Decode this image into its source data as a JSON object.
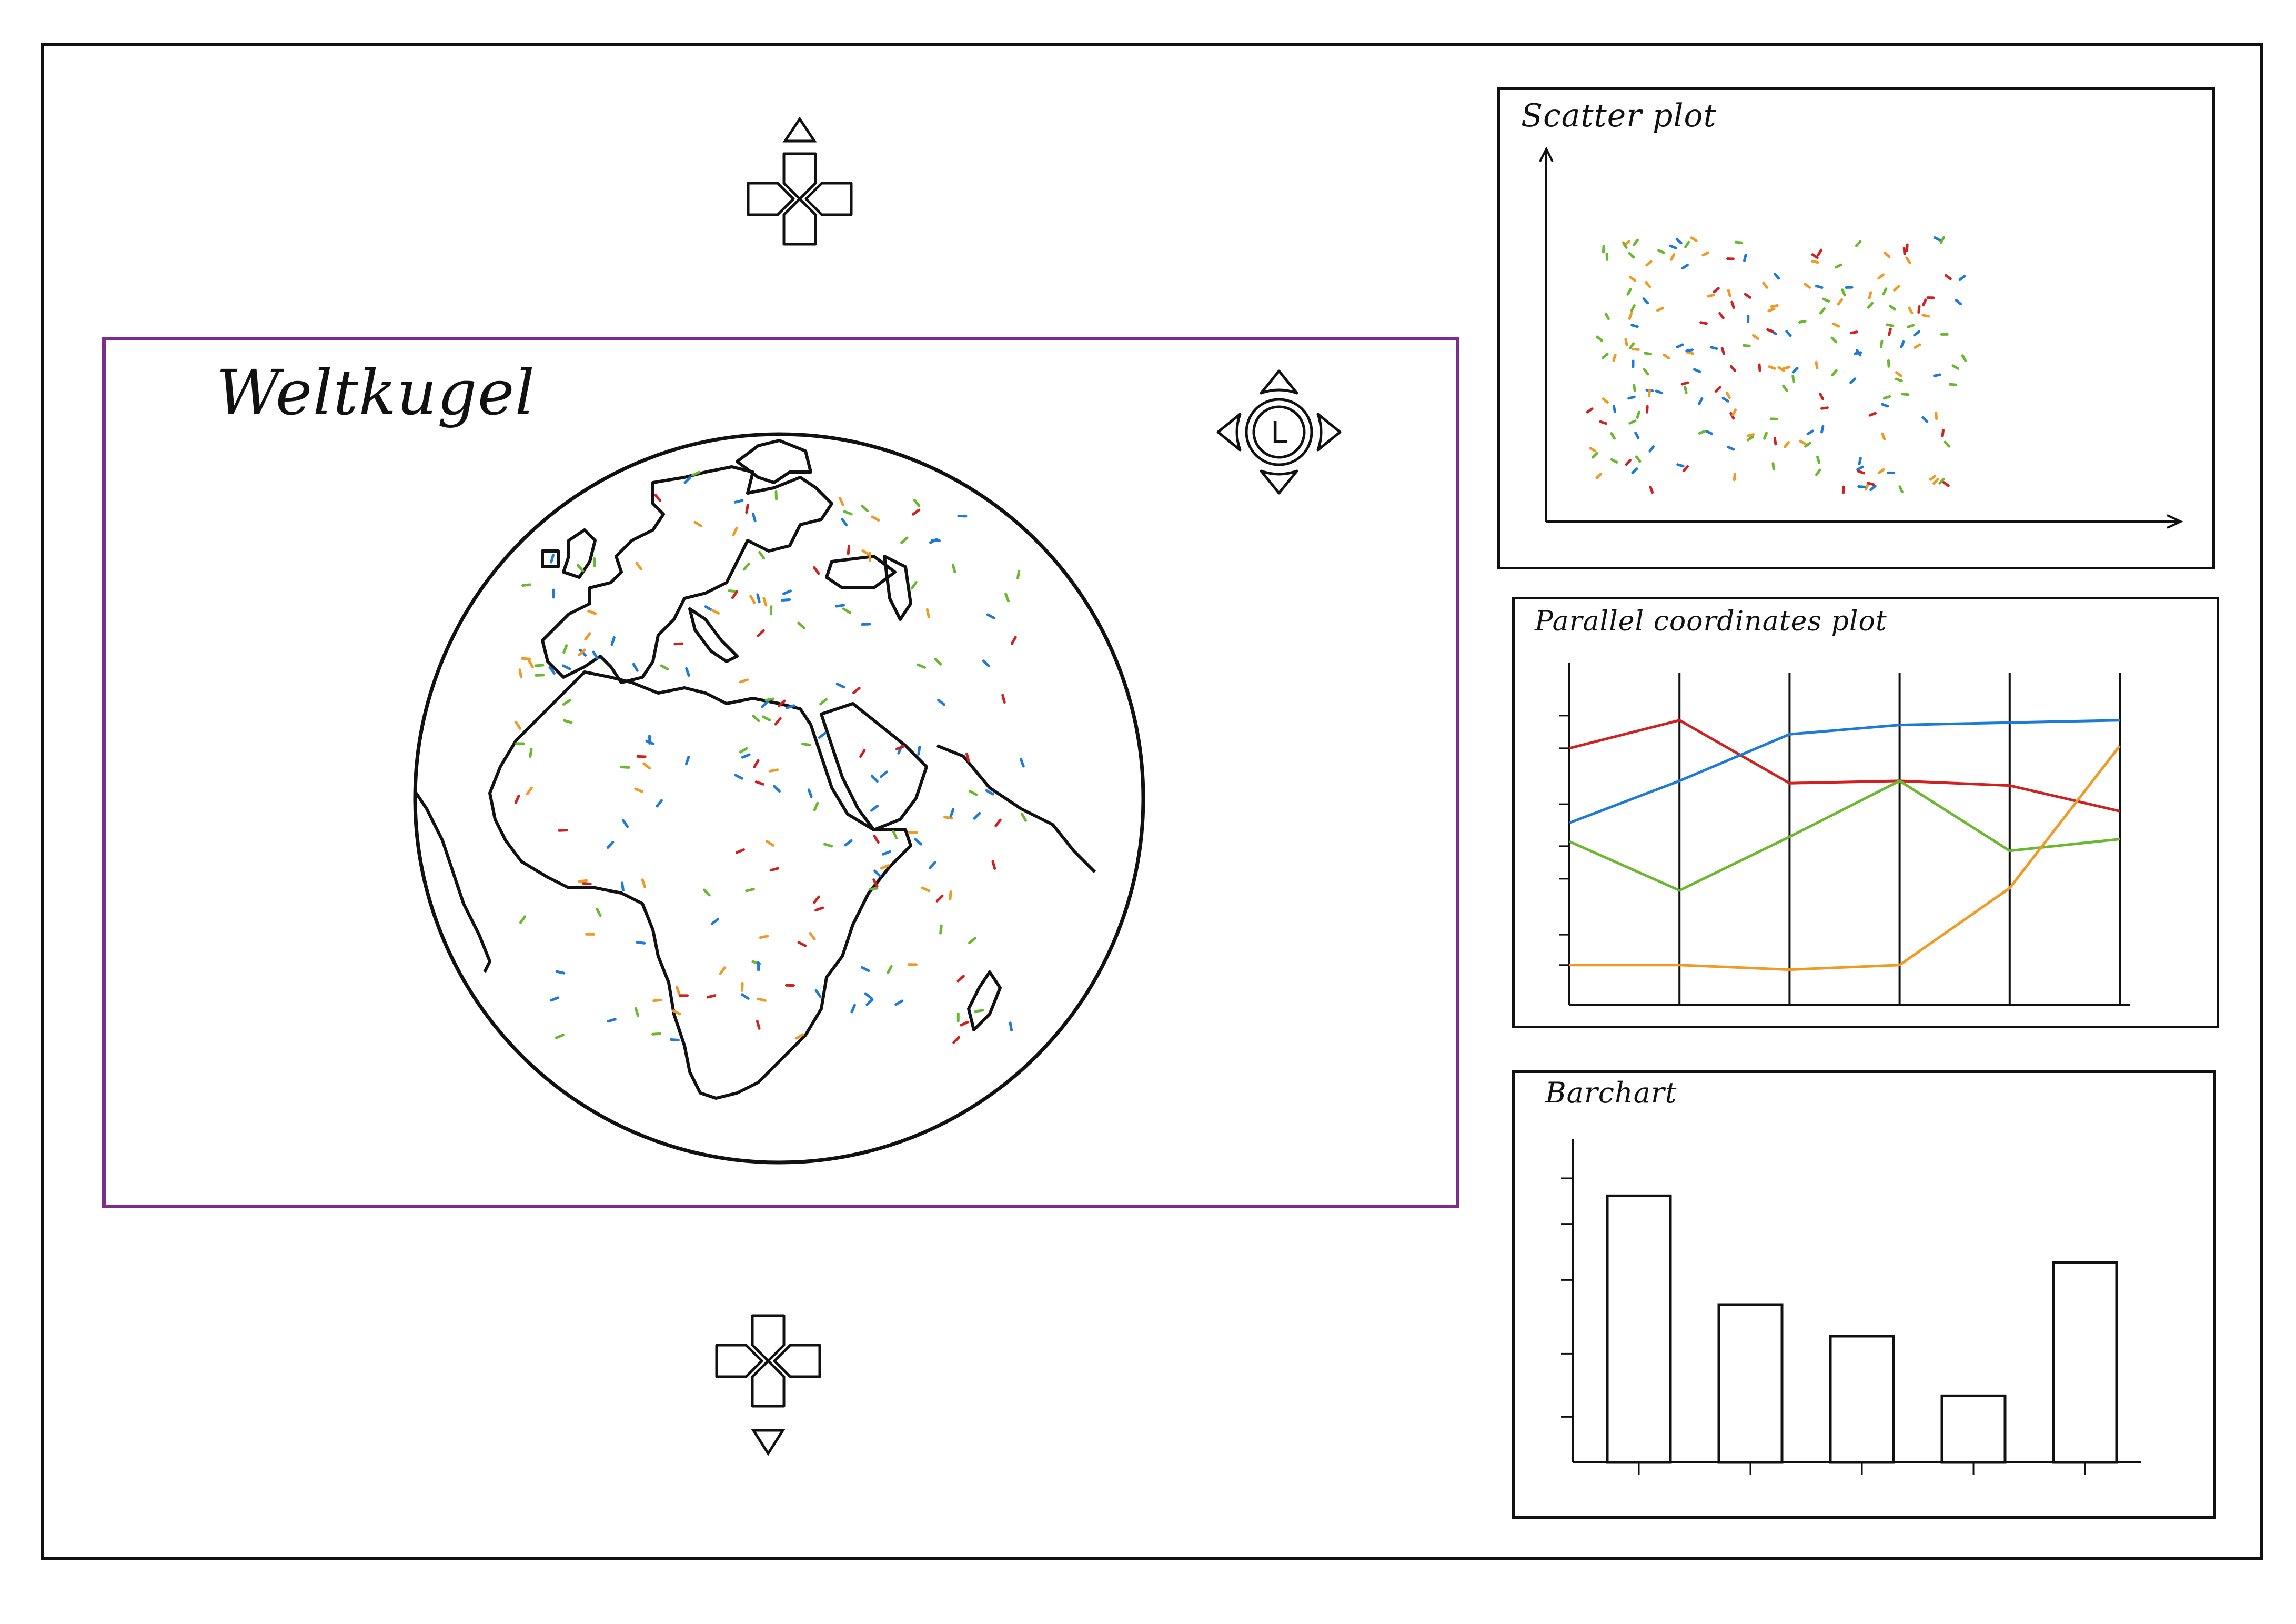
{
  "globe_view": {
    "title": "Weltkugel",
    "border_color": "#7b2d8e",
    "data_point_colors": [
      "#1e7ad8",
      "#6ab82e",
      "#f09a24",
      "#d02020"
    ]
  },
  "controls": {
    "top_dpad": {
      "icon": "dpad-icon",
      "arrow": "up-triangle-icon"
    },
    "bottom_dpad": {
      "icon": "dpad-icon",
      "arrow": "down-triangle-icon"
    },
    "rotate_control": {
      "icon": "rotate-control-icon",
      "label": "L"
    }
  },
  "scatter": {
    "title": "Scatter plot",
    "chart_data": {
      "type": "scatter",
      "title": "Scatter plot",
      "series_colors": [
        "#f09a24",
        "#d02020",
        "#1e7ad8",
        "#6ab82e"
      ]
    }
  },
  "parallel": {
    "title": "Parallel coordinates plot",
    "chart_data": {
      "type": "line",
      "title": "Parallel coordinates plot",
      "x": [
        0,
        1,
        2,
        3,
        4,
        5
      ],
      "series": [
        {
          "color": "#d02020",
          "values": [
            11,
            12.2,
            9.5,
            9.6,
            9.4,
            8.3
          ]
        },
        {
          "color": "#1e7ad8",
          "values": [
            7.8,
            9.6,
            11.6,
            12.0,
            12.1,
            12.2
          ]
        },
        {
          "color": "#6ab82e",
          "values": [
            7.0,
            4.9,
            7.2,
            9.6,
            6.6,
            7.1
          ]
        },
        {
          "color": "#f09a24",
          "values": [
            1.7,
            1.7,
            1.5,
            1.7,
            5.0,
            11.1
          ]
        }
      ],
      "ylim": [
        0,
        14
      ]
    }
  },
  "barchart": {
    "title": "Barchart",
    "chart_data": {
      "type": "bar",
      "title": "Barchart",
      "values": [
        7.6,
        4.5,
        3.6,
        1.9,
        5.7
      ],
      "ylim": [
        0,
        9
      ]
    }
  }
}
